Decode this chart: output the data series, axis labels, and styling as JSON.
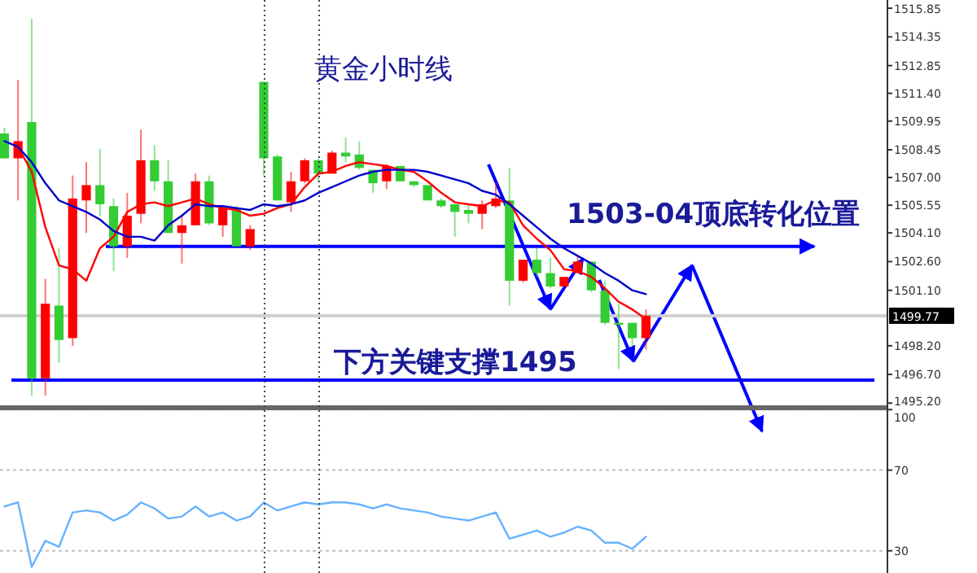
{
  "chart_data": [
    {
      "type": "candlestick",
      "title": "黄金小时线",
      "annotations": [
        "1503-04顶底转化位置",
        "下方关键支撑1495"
      ],
      "categories": [
        null,
        null,
        null,
        null,
        null,
        null,
        null,
        null,
        null,
        null,
        null,
        null,
        null,
        null,
        null,
        null,
        null,
        null,
        null,
        null,
        null,
        null,
        null,
        null,
        null,
        null,
        null,
        null,
        null,
        null,
        null,
        null,
        null,
        null,
        null,
        null,
        null,
        null,
        null,
        null,
        null,
        null,
        null,
        null,
        null,
        null,
        null,
        null
      ],
      "ohlc": [
        [
          1509.3,
          1509.6,
          1508.0,
          1508.0
        ],
        [
          1508.0,
          1512.1,
          1505.8,
          1508.9
        ],
        [
          1509.9,
          1515.3,
          1495.6,
          1496.5
        ],
        [
          1496.5,
          1501.7,
          1495.6,
          1500.4
        ],
        [
          1500.3,
          1503.3,
          1497.3,
          1498.5
        ],
        [
          1498.6,
          1507.1,
          1498.2,
          1505.9
        ],
        [
          1505.8,
          1507.8,
          1504.1,
          1506.6
        ],
        [
          1506.6,
          1508.5,
          1505.0,
          1505.6
        ],
        [
          1505.5,
          1505.9,
          1502.1,
          1503.4
        ],
        [
          1503.4,
          1506.2,
          1502.8,
          1505.0
        ],
        [
          1505.1,
          1509.5,
          1504.6,
          1507.9
        ],
        [
          1507.9,
          1508.7,
          1506.3,
          1506.8
        ],
        [
          1506.8,
          1507.9,
          1504.1,
          1504.1
        ],
        [
          1504.1,
          1505.0,
          1502.5,
          1504.5
        ],
        [
          1504.5,
          1507.2,
          1504.5,
          1506.8
        ],
        [
          1506.8,
          1507.1,
          1504.5,
          1504.6
        ],
        [
          1504.5,
          1505.5,
          1503.9,
          1505.4
        ],
        [
          1505.4,
          1505.5,
          1503.4,
          1503.4
        ],
        [
          1503.4,
          1504.5,
          1503.2,
          1504.3
        ],
        [
          1512.0,
          1512.0,
          1507.1,
          1508.0
        ],
        [
          1508.1,
          1508.2,
          1505.8,
          1505.8
        ],
        [
          1505.7,
          1507.3,
          1505.2,
          1506.8
        ],
        [
          1506.8,
          1508.0,
          1506.7,
          1507.9
        ],
        [
          1507.9,
          1508.0,
          1506.8,
          1507.2
        ],
        [
          1507.2,
          1508.4,
          1507.2,
          1508.3
        ],
        [
          1508.3,
          1509.1,
          1507.8,
          1508.1
        ],
        [
          1508.2,
          1508.9,
          1507.4,
          1507.5
        ],
        [
          1507.4,
          1507.4,
          1506.2,
          1506.7
        ],
        [
          1506.8,
          1507.7,
          1506.4,
          1507.6
        ],
        [
          1507.6,
          1507.6,
          1506.8,
          1506.8
        ],
        [
          1506.8,
          1506.8,
          1506.5,
          1506.6
        ],
        [
          1506.6,
          1506.6,
          1505.8,
          1505.8
        ],
        [
          1505.8,
          1505.9,
          1505.4,
          1505.5
        ],
        [
          1505.6,
          1505.6,
          1503.9,
          1505.2
        ],
        [
          1505.3,
          1505.6,
          1504.6,
          1505.1
        ],
        [
          1505.1,
          1505.8,
          1504.3,
          1505.6
        ],
        [
          1505.5,
          1506.7,
          1505.4,
          1505.9
        ],
        [
          1505.8,
          1507.5,
          1500.3,
          1501.6
        ],
        [
          1501.6,
          1502.7,
          1501.5,
          1502.7
        ],
        [
          1502.7,
          1503.3,
          1501.8,
          1502.0
        ],
        [
          1502.0,
          1502.8,
          1501.2,
          1501.3
        ],
        [
          1501.3,
          1501.8,
          1501.3,
          1501.8
        ],
        [
          1502.0,
          1502.9,
          1502.0,
          1502.6
        ],
        [
          1502.6,
          1502.6,
          1501.0,
          1501.1
        ],
        [
          1501.1,
          1501.6,
          1499.3,
          1499.4
        ],
        [
          1499.4,
          1500.4,
          1497.0,
          1499.3
        ],
        [
          1499.4,
          1499.4,
          1498.2,
          1498.6
        ],
        [
          1498.6,
          1500.1,
          1498.0,
          1499.77
        ]
      ],
      "colors": [
        "#33cc33",
        "#ff0000",
        "#33cc33",
        "#ff0000",
        "#33cc33",
        "#ff0000",
        "#ff0000",
        "#33cc33",
        "#33cc33",
        "#ff0000",
        "#ff0000",
        "#33cc33",
        "#33cc33",
        "#ff0000",
        "#ff0000",
        "#33cc33",
        "#ff0000",
        "#33cc33",
        "#ff0000",
        "#33cc33",
        "#33cc33",
        "#ff0000",
        "#ff0000",
        "#33cc33",
        "#ff0000",
        "#33cc33",
        "#33cc33",
        "#33cc33",
        "#ff0000",
        "#33cc33",
        "#33cc33",
        "#33cc33",
        "#33cc33",
        "#33cc33",
        "#33cc33",
        "#ff0000",
        "#ff0000",
        "#33cc33",
        "#ff0000",
        "#33cc33",
        "#33cc33",
        "#ff0000",
        "#ff0000",
        "#33cc33",
        "#33cc33",
        "#33cc33",
        "#33cc33",
        "#ff0000"
      ],
      "series": [
        {
          "type": "line",
          "color": "#ff0000",
          "values": [
            null,
            1508.6,
            1507.3,
            1504.4,
            1502.4,
            1502.2,
            1501.6,
            1503.3,
            1503.9,
            1505.2,
            1505.6,
            1505.7,
            1505.5,
            1505.7,
            1505.9,
            1505.6,
            1505.4,
            1505.3,
            1505.0,
            1505.1,
            1505.4,
            1505.6,
            1506.5,
            1507.2,
            1507.3,
            1507.6,
            1507.8,
            1507.7,
            1507.6,
            1507.4,
            1507.3,
            1506.8,
            1506.2,
            1505.7,
            1505.6,
            1505.5,
            1505.8,
            1505.7,
            1504.5,
            1503.8,
            1503.2,
            1502.2,
            1502.1,
            1501.8,
            1501.2,
            1500.5,
            1500.1,
            1499.6
          ]
        },
        {
          "type": "line",
          "color": "#0000cc",
          "values": [
            1508.9,
            1508.6,
            1507.8,
            1506.7,
            1505.8,
            1505.5,
            1505.2,
            1504.8,
            1504.2,
            1503.9,
            1503.9,
            1503.7,
            1504.5,
            1505.0,
            1505.6,
            1505.5,
            1505.5,
            1505.4,
            1505.3,
            1505.6,
            1505.5,
            1505.6,
            1505.8,
            1506.2,
            1506.5,
            1506.8,
            1507.1,
            1507.3,
            1507.4,
            1507.4,
            1507.4,
            1507.3,
            1507.1,
            1506.9,
            1506.7,
            1506.3,
            1506.1,
            1505.6,
            1505.0,
            1504.4,
            1503.8,
            1503.3,
            1502.9,
            1502.5,
            1502.0,
            1501.6,
            1501.1,
            1500.9
          ]
        }
      ],
      "ylim": [
        1495.0,
        1516.28
      ],
      "yticks": [
        1515.85,
        1514.35,
        1512.85,
        {
          "value": 1511.4,
          "label": "1511.40"
        },
        1509.95,
        1508.45,
        {
          "value": 1507,
          "label": "1507.00"
        },
        1505.55,
        {
          "value": 1504.1,
          "label": "1504.10"
        },
        {
          "value": 1502.6,
          "label": "1502.60"
        },
        {
          "value": 1501.1,
          "label": "1501.10"
        },
        {
          "value": 1498.2,
          "label": "1498.20"
        },
        {
          "value": 1496.7,
          "label": "1496.70"
        },
        {
          "value": 1495.2,
          "label": "1495.20"
        }
      ],
      "ref_lines": [
        {
          "axis": "y",
          "value": 1503.4,
          "color": "#0000ff"
        },
        {
          "axis": "y",
          "value": 1496.4,
          "color": "#0000ff"
        },
        {
          "axis": "y",
          "value": 1499.77,
          "label": "1499.77",
          "color": "#d0d0d0"
        }
      ],
      "tick_labels": "y"
    },
    {
      "type": "line",
      "categories": [
        null,
        null,
        null,
        null,
        null,
        null,
        null,
        null,
        null,
        null,
        null,
        null,
        null,
        null,
        null,
        null,
        null,
        null,
        null,
        null,
        null,
        null,
        null,
        null,
        null,
        null,
        null,
        null,
        null,
        null,
        null,
        null,
        null,
        null,
        null,
        null,
        null,
        null,
        null,
        null,
        null,
        null,
        null,
        null,
        null,
        null,
        null,
        null
      ],
      "series": [
        {
          "color": "#66b3ff",
          "values": [
            52,
            54,
            22,
            35,
            32,
            49,
            50,
            49,
            45,
            48,
            54,
            51,
            46,
            47,
            52,
            47,
            49,
            45,
            47,
            54,
            50,
            52,
            54,
            53,
            54,
            54,
            53,
            51,
            53,
            51,
            50,
            49,
            47,
            46,
            45,
            47,
            49,
            36,
            38,
            40,
            37,
            39,
            42,
            40,
            34,
            34,
            31,
            37
          ]
        }
      ],
      "ylim": [
        19,
        100.5
      ],
      "yticks": [
        100,
        70,
        30
      ],
      "grid": "y",
      "tick_labels": "y"
    }
  ]
}
